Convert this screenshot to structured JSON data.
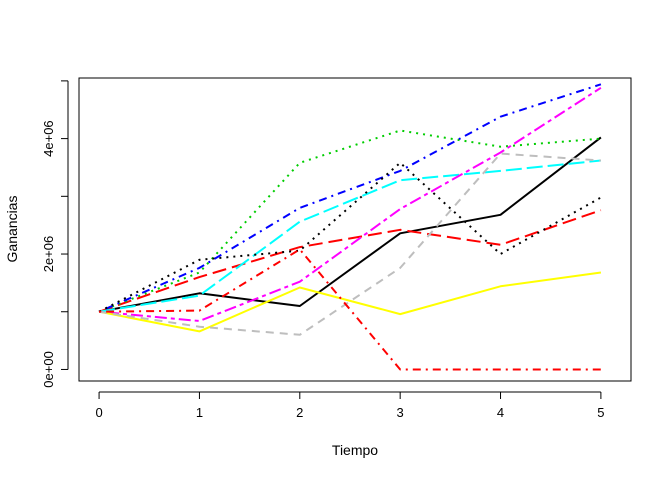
{
  "chart_data": {
    "type": "line",
    "title": "",
    "xlabel": "Tiempo",
    "ylabel": "Ganancias",
    "xlim": [
      -0.2,
      5.3
    ],
    "ylim": [
      -200000,
      5050000
    ],
    "x_ticks": [
      0,
      1,
      2,
      3,
      4,
      5
    ],
    "x_tick_labels": [
      "0",
      "1",
      "2",
      "3",
      "4",
      "5"
    ],
    "y_ticks": [
      0,
      2000000,
      4000000
    ],
    "y_tick_labels": [
      "0e+00",
      "2e+06",
      "4e+06"
    ],
    "grid": false,
    "legend": "none",
    "x": [
      0,
      1,
      2,
      3,
      4,
      5
    ],
    "series": [
      {
        "color": "#000000",
        "dash": "solid",
        "values": [
          1000000,
          1320000,
          1100000,
          2360000,
          2680000,
          4020000
        ]
      },
      {
        "color": "#ff0000",
        "dash": "longdash",
        "values": [
          1000000,
          1600000,
          2120000,
          2420000,
          2160000,
          2760000
        ]
      },
      {
        "color": "#00cd00",
        "dash": "dotted",
        "values": [
          1000000,
          1680000,
          3580000,
          4140000,
          3860000,
          4000000
        ]
      },
      {
        "color": "#0000ff",
        "dash": "dotdash",
        "values": [
          1000000,
          1760000,
          2800000,
          3440000,
          4380000,
          4940000
        ]
      },
      {
        "color": "#00ffff",
        "dash": "longdash2",
        "values": [
          1000000,
          1280000,
          2560000,
          3280000,
          3440000,
          3620000
        ]
      },
      {
        "color": "#ff00ff",
        "dash": "twodash",
        "values": [
          1000000,
          840000,
          1520000,
          2780000,
          3760000,
          4880000
        ]
      },
      {
        "color": "#ffff00",
        "dash": "solid",
        "values": [
          1000000,
          660000,
          1420000,
          960000,
          1440000,
          1680000
        ]
      },
      {
        "color": "#bebebe",
        "dash": "dashed",
        "values": [
          1000000,
          740000,
          600000,
          1760000,
          3740000,
          3620000
        ]
      },
      {
        "color": "#000000",
        "dash": "dotted",
        "values": [
          1000000,
          1900000,
          2060000,
          3580000,
          2000000,
          2980000
        ]
      },
      {
        "color": "#ff0000",
        "dash": "dotdash",
        "values": [
          1000000,
          1020000,
          2080000,
          0,
          0,
          0
        ]
      }
    ]
  }
}
